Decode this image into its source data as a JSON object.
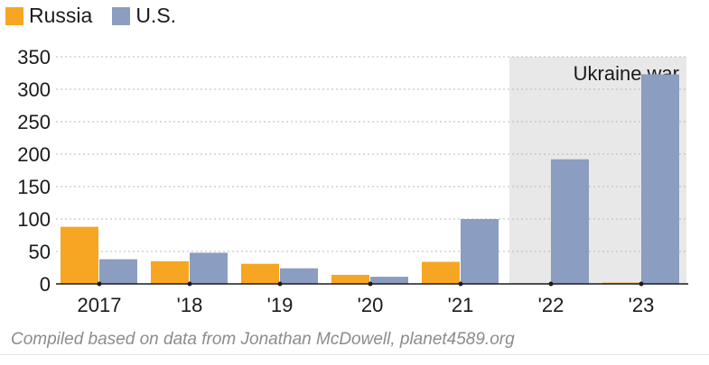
{
  "legend": [
    {
      "name": "Russia",
      "color": "#f6a623"
    },
    {
      "name": "U.S.",
      "color": "#8b9dc0"
    }
  ],
  "chart_data": {
    "type": "bar",
    "categories": [
      "2017",
      "'18",
      "'19",
      "'20",
      "'21",
      "'22",
      "'23"
    ],
    "series": [
      {
        "name": "Russia",
        "color": "#f6a623",
        "values": [
          88,
          35,
          31,
          14,
          34,
          1,
          2
        ]
      },
      {
        "name": "U.S.",
        "color": "#8b9dc0",
        "values": [
          38,
          48,
          24,
          11,
          100,
          192,
          323
        ]
      }
    ],
    "ylim": [
      0,
      350
    ],
    "yticks": [
      0,
      50,
      100,
      150,
      200,
      250,
      300,
      350
    ],
    "grid": true,
    "annotation": {
      "label": "Ukraine war",
      "from_category": "'22",
      "to_category": "'23",
      "shade_color": "#e8e8e8"
    }
  },
  "source_note": "Compiled based on data from Jonathan McDowell, planet4589.org"
}
